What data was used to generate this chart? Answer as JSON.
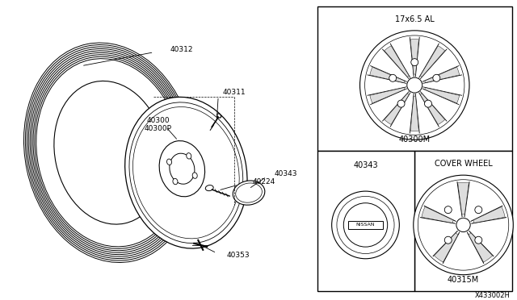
{
  "bg_color": "#ffffff",
  "diagram_ref": "X433002H",
  "lc": "#000000",
  "parts": {
    "tire_label": "40312",
    "stem_label": "40311",
    "wheel_label1": "40300",
    "wheel_label2": "40300P",
    "nut_label": "40224",
    "cap_label": "40343",
    "bolt_label": "40353"
  },
  "inset_top_label": "17x6.5 AL",
  "inset_top_part": "40300M",
  "inset_bl_label": "40343",
  "inset_br_label": "COVER WHEEL",
  "inset_br_part": "40315M"
}
